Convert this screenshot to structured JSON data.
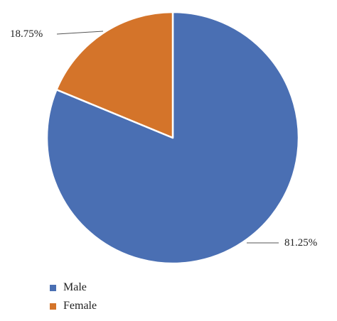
{
  "chart_data": {
    "type": "pie",
    "slices": [
      {
        "name": "Male",
        "value": 81.25,
        "label": "81.25%",
        "color": "#4a6fb3"
      },
      {
        "name": "Female",
        "value": 18.75,
        "label": "18.75%",
        "color": "#d4742a"
      }
    ],
    "legend": {
      "placement": "bottom-left",
      "items": [
        "Male",
        "Female"
      ]
    }
  }
}
